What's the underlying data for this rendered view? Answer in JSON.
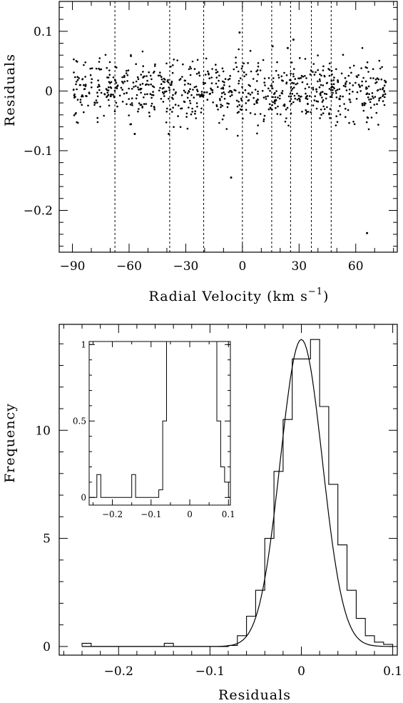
{
  "chart_data": [
    {
      "id": "top",
      "type": "scatter",
      "xlabel": "Radial   Velocity   (km s",
      "xlabel_sup": "−1",
      "xlabel_close": ")",
      "ylabel": "Residuals",
      "xlim": [
        -97,
        82
      ],
      "ylim": [
        -0.27,
        0.15
      ],
      "xticks": [
        {
          "v": -90,
          "t": "−90"
        },
        {
          "v": -60,
          "t": "−60"
        },
        {
          "v": -30,
          "t": "−30"
        },
        {
          "v": 0,
          "t": "0"
        },
        {
          "v": 30,
          "t": "30"
        },
        {
          "v": 60,
          "t": "60"
        }
      ],
      "yticks": [
        {
          "v": 0.1,
          "t": "0.1"
        },
        {
          "v": 0,
          "t": "0"
        },
        {
          "v": -0.1,
          "t": "−0.1"
        },
        {
          "v": -0.2,
          "t": "−0.2"
        }
      ],
      "vlines": [
        -67.5,
        -38.5,
        -20.5,
        0,
        15.5,
        25.5,
        36.5,
        47
      ],
      "scatter_x_range": [
        -90,
        76
      ],
      "scatter_sigma": 0.025,
      "outliers": [
        [
          -6,
          -0.145
        ],
        [
          -1.5,
          0.098
        ],
        [
          16,
          0.075
        ],
        [
          24,
          0.072
        ],
        [
          27,
          0.086
        ],
        [
          66,
          -0.238
        ],
        [
          -57,
          -0.072
        ],
        [
          -39,
          -0.072
        ]
      ]
    },
    {
      "id": "bottom",
      "type": "histogram",
      "xlabel": "Residuals",
      "ylabel": "Frequency",
      "xlim": [
        -0.265,
        0.105
      ],
      "ylim": [
        -0.4,
        14.9
      ],
      "xticks": [
        {
          "v": -0.2,
          "t": "−0.2"
        },
        {
          "v": -0.1,
          "t": "−0.1"
        },
        {
          "v": 0,
          "t": "0"
        },
        {
          "v": 0.1,
          "t": "0.1"
        }
      ],
      "yticks": [
        {
          "v": 0,
          "t": "0"
        },
        {
          "v": 5,
          "t": "5"
        },
        {
          "v": 10,
          "t": "10"
        }
      ],
      "bin_edges": [
        -0.24,
        -0.23,
        -0.22,
        -0.21,
        -0.2,
        -0.19,
        -0.18,
        -0.17,
        -0.16,
        -0.15,
        -0.14,
        -0.13,
        -0.12,
        -0.11,
        -0.1,
        -0.09,
        -0.08,
        -0.07,
        -0.06,
        -0.05,
        -0.04,
        -0.03,
        -0.02,
        -0.01,
        0,
        0.01,
        0.02,
        0.03,
        0.04,
        0.05,
        0.06,
        0.07,
        0.08,
        0.09,
        0.1
      ],
      "counts": [
        0.15,
        0,
        0,
        0,
        0,
        0,
        0,
        0,
        0,
        0.15,
        0,
        0,
        0,
        0,
        0,
        0,
        0.05,
        0.5,
        1.4,
        2.6,
        5.0,
        8.1,
        10.5,
        13.3,
        13.3,
        14.2,
        11.1,
        7.5,
        4.7,
        2.6,
        1.3,
        0.5,
        0.2,
        0.1
      ],
      "gaussian": {
        "amplitude": 14.2,
        "mean": 0.0,
        "sigma": 0.023
      },
      "inset": {
        "xlim": [
          -0.26,
          0.105
        ],
        "ylim": [
          -0.05,
          1.02
        ],
        "xticks": [
          {
            "v": -0.2,
            "t": "−0.2"
          },
          {
            "v": -0.1,
            "t": "−0.1"
          },
          {
            "v": 0,
            "t": "0"
          },
          {
            "v": 0.1,
            "t": "0.1"
          }
        ],
        "yticks": [
          {
            "v": 0,
            "t": "0"
          },
          {
            "v": 0.5,
            "t": "0.5"
          },
          {
            "v": 1,
            "t": "1"
          }
        ]
      }
    }
  ]
}
